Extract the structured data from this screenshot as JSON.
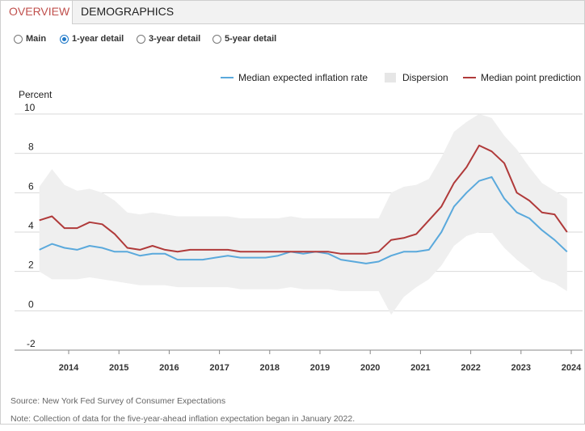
{
  "tabs": [
    {
      "label": "OVERVIEW",
      "active": true
    },
    {
      "label": "DEMOGRAPHICS",
      "active": false
    }
  ],
  "radio_options": [
    {
      "label": "Main",
      "selected": false
    },
    {
      "label": "1-year detail",
      "selected": true
    },
    {
      "label": "3-year detail",
      "selected": false
    },
    {
      "label": "5-year detail",
      "selected": false
    }
  ],
  "colors": {
    "median_expected": "#5aa9dc",
    "median_point": "#b03a3a",
    "dispersion": "#efefef",
    "active_tab": "#c0504d",
    "radio_selected": "#1e78c8"
  },
  "chart_data": {
    "type": "line",
    "ylabel": "Percent",
    "ylim": [
      -2,
      10
    ],
    "yticks": [
      10,
      8,
      6,
      4,
      2,
      0,
      -2
    ],
    "xlim": [
      "2013-06",
      "2024-01"
    ],
    "xticks": [
      "2014",
      "2015",
      "2016",
      "2017",
      "2018",
      "2019",
      "2020",
      "2021",
      "2022",
      "2023",
      "2024"
    ],
    "grid": "horizontal",
    "legend_position": "top-right",
    "legend": [
      "Median expected inflation rate",
      "Dispersion",
      "Median point prediction"
    ],
    "series": [
      {
        "name": "Median expected inflation rate",
        "points": [
          [
            "2013-06",
            3.1
          ],
          [
            "2013-09",
            3.4
          ],
          [
            "2013-12",
            3.2
          ],
          [
            "2014-03",
            3.1
          ],
          [
            "2014-06",
            3.3
          ],
          [
            "2014-09",
            3.2
          ],
          [
            "2014-12",
            3.0
          ],
          [
            "2015-03",
            3.0
          ],
          [
            "2015-06",
            2.8
          ],
          [
            "2015-09",
            2.9
          ],
          [
            "2015-12",
            2.9
          ],
          [
            "2016-03",
            2.6
          ],
          [
            "2016-06",
            2.6
          ],
          [
            "2016-09",
            2.6
          ],
          [
            "2016-12",
            2.7
          ],
          [
            "2017-03",
            2.8
          ],
          [
            "2017-06",
            2.7
          ],
          [
            "2017-09",
            2.7
          ],
          [
            "2017-12",
            2.7
          ],
          [
            "2018-03",
            2.8
          ],
          [
            "2018-06",
            3.0
          ],
          [
            "2018-09",
            2.9
          ],
          [
            "2018-12",
            3.0
          ],
          [
            "2019-03",
            2.9
          ],
          [
            "2019-06",
            2.6
          ],
          [
            "2019-09",
            2.5
          ],
          [
            "2019-12",
            2.4
          ],
          [
            "2020-03",
            2.5
          ],
          [
            "2020-06",
            2.8
          ],
          [
            "2020-09",
            3.0
          ],
          [
            "2020-12",
            3.0
          ],
          [
            "2021-03",
            3.1
          ],
          [
            "2021-06",
            4.0
          ],
          [
            "2021-09",
            5.3
          ],
          [
            "2021-12",
            6.0
          ],
          [
            "2022-03",
            6.6
          ],
          [
            "2022-06",
            6.8
          ],
          [
            "2022-09",
            5.7
          ],
          [
            "2022-12",
            5.0
          ],
          [
            "2023-03",
            4.7
          ],
          [
            "2023-06",
            4.1
          ],
          [
            "2023-09",
            3.6
          ],
          [
            "2023-12",
            3.0
          ]
        ]
      },
      {
        "name": "Median point prediction",
        "points": [
          [
            "2013-06",
            4.6
          ],
          [
            "2013-09",
            4.8
          ],
          [
            "2013-12",
            4.2
          ],
          [
            "2014-03",
            4.2
          ],
          [
            "2014-06",
            4.5
          ],
          [
            "2014-09",
            4.4
          ],
          [
            "2014-12",
            3.9
          ],
          [
            "2015-03",
            3.2
          ],
          [
            "2015-06",
            3.1
          ],
          [
            "2015-09",
            3.3
          ],
          [
            "2015-12",
            3.1
          ],
          [
            "2016-03",
            3.0
          ],
          [
            "2016-06",
            3.1
          ],
          [
            "2016-09",
            3.1
          ],
          [
            "2016-12",
            3.1
          ],
          [
            "2017-03",
            3.1
          ],
          [
            "2017-06",
            3.0
          ],
          [
            "2017-09",
            3.0
          ],
          [
            "2017-12",
            3.0
          ],
          [
            "2018-03",
            3.0
          ],
          [
            "2018-06",
            3.0
          ],
          [
            "2018-09",
            3.0
          ],
          [
            "2018-12",
            3.0
          ],
          [
            "2019-03",
            3.0
          ],
          [
            "2019-06",
            2.9
          ],
          [
            "2019-09",
            2.9
          ],
          [
            "2019-12",
            2.9
          ],
          [
            "2020-03",
            3.0
          ],
          [
            "2020-06",
            3.6
          ],
          [
            "2020-09",
            3.7
          ],
          [
            "2020-12",
            3.9
          ],
          [
            "2021-03",
            4.6
          ],
          [
            "2021-06",
            5.3
          ],
          [
            "2021-09",
            6.5
          ],
          [
            "2021-12",
            7.3
          ],
          [
            "2022-03",
            8.4
          ],
          [
            "2022-06",
            8.1
          ],
          [
            "2022-09",
            7.5
          ],
          [
            "2022-12",
            6.0
          ],
          [
            "2023-03",
            5.6
          ],
          [
            "2023-06",
            5.0
          ],
          [
            "2023-09",
            4.9
          ],
          [
            "2023-12",
            4.0
          ]
        ]
      },
      {
        "name": "Dispersion",
        "kind": "band",
        "points": [
          [
            "2013-06",
            2.0,
            6.3
          ],
          [
            "2013-09",
            1.6,
            7.2
          ],
          [
            "2013-12",
            1.6,
            6.4
          ],
          [
            "2014-03",
            1.6,
            6.1
          ],
          [
            "2014-06",
            1.7,
            6.2
          ],
          [
            "2014-09",
            1.6,
            6.0
          ],
          [
            "2014-12",
            1.5,
            5.6
          ],
          [
            "2015-03",
            1.4,
            5.0
          ],
          [
            "2015-06",
            1.3,
            4.9
          ],
          [
            "2015-09",
            1.3,
            5.0
          ],
          [
            "2015-12",
            1.3,
            4.9
          ],
          [
            "2016-03",
            1.2,
            4.8
          ],
          [
            "2016-06",
            1.2,
            4.8
          ],
          [
            "2016-09",
            1.2,
            4.8
          ],
          [
            "2016-12",
            1.2,
            4.8
          ],
          [
            "2017-03",
            1.2,
            4.8
          ],
          [
            "2017-06",
            1.1,
            4.7
          ],
          [
            "2017-09",
            1.1,
            4.7
          ],
          [
            "2017-12",
            1.1,
            4.7
          ],
          [
            "2018-03",
            1.1,
            4.7
          ],
          [
            "2018-06",
            1.2,
            4.8
          ],
          [
            "2018-09",
            1.1,
            4.7
          ],
          [
            "2018-12",
            1.1,
            4.7
          ],
          [
            "2019-03",
            1.1,
            4.7
          ],
          [
            "2019-06",
            1.0,
            4.7
          ],
          [
            "2019-09",
            1.0,
            4.7
          ],
          [
            "2019-12",
            1.0,
            4.7
          ],
          [
            "2020-03",
            1.0,
            4.7
          ],
          [
            "2020-06",
            -0.2,
            6.0
          ],
          [
            "2020-09",
            0.7,
            6.3
          ],
          [
            "2020-12",
            1.2,
            6.4
          ],
          [
            "2021-03",
            1.6,
            6.7
          ],
          [
            "2021-06",
            2.3,
            7.8
          ],
          [
            "2021-09",
            3.3,
            9.1
          ],
          [
            "2021-12",
            3.8,
            9.6
          ],
          [
            "2022-03",
            4.0,
            10.0
          ],
          [
            "2022-06",
            4.0,
            9.8
          ],
          [
            "2022-09",
            3.2,
            8.9
          ],
          [
            "2022-12",
            2.6,
            8.2
          ],
          [
            "2023-03",
            2.1,
            7.3
          ],
          [
            "2023-06",
            1.6,
            6.5
          ],
          [
            "2023-09",
            1.4,
            6.1
          ],
          [
            "2023-12",
            1.0,
            5.7
          ]
        ]
      }
    ]
  },
  "footer": {
    "source": "Source: New York Fed Survey of Consumer Expectations",
    "note": "Note: Collection of data for the five-year-ahead inflation expectation began in January 2022."
  }
}
